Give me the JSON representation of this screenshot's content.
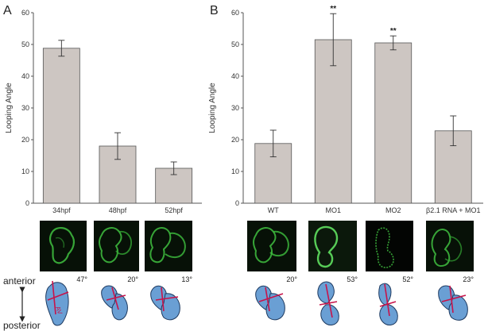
{
  "panels": [
    "A",
    "B"
  ],
  "chart_data": [
    {
      "type": "bar",
      "panel": "A",
      "ylabel": "Looping Angle",
      "ylim": [
        0,
        60
      ],
      "yticks": [
        0,
        10,
        20,
        30,
        40,
        50,
        60
      ],
      "categories": [
        "34hpf",
        "48hpf",
        "52hpf"
      ],
      "values": [
        48.8,
        18.0,
        11.0
      ],
      "errors": [
        2.5,
        4.2,
        2.0
      ],
      "annotations": [
        "",
        "",
        ""
      ],
      "bar_color": "#cdc6c2"
    },
    {
      "type": "bar",
      "panel": "B",
      "ylabel": "Looping Angle",
      "ylim": [
        0,
        60
      ],
      "yticks": [
        0,
        10,
        20,
        30,
        40,
        50,
        60
      ],
      "categories": [
        "WT",
        "MO1",
        "MO2",
        "β2.1 RNA + MO1"
      ],
      "values": [
        18.8,
        51.5,
        50.5,
        22.8
      ],
      "errors": [
        4.2,
        8.2,
        2.2,
        4.7
      ],
      "annotations": [
        "",
        "**",
        "**",
        ""
      ],
      "bar_color": "#cdc6c2"
    }
  ],
  "images": {
    "panel_a_angles": [
      "47°",
      "20°",
      "13°"
    ],
    "panel_b_angles": [
      "20°",
      "53°",
      "52°",
      "23°"
    ],
    "heart_color": "#6a9fd4",
    "line_color": "#c8134a",
    "av_label": "AV"
  },
  "axis_legend": {
    "anterior": "anterior",
    "posterior": "posterior"
  }
}
